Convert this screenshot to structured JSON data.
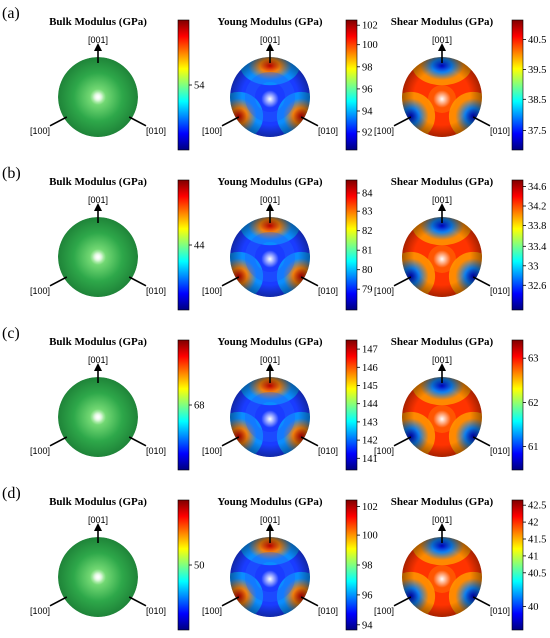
{
  "figure": {
    "colormap": [
      "#00007f",
      "#0000ff",
      "#0080ff",
      "#00ffff",
      "#80ff80",
      "#ffff00",
      "#ff8000",
      "#ff0000",
      "#7f0000"
    ],
    "bulk_sphere_color": "#2ea84a",
    "panels": [
      {
        "label": "(a)",
        "plots": [
          {
            "title": "Bulk Modulus (GPa)",
            "kind": "bulk",
            "colorbar_ticks": [
              {
                "label": "54",
                "frac": 0.5
              }
            ],
            "directions": [
              "[001]",
              "[100]",
              "[010]"
            ]
          },
          {
            "title": "Young Modulus (GPa)",
            "kind": "young",
            "colorbar_ticks": [
              {
                "label": "102",
                "frac": 0.96
              },
              {
                "label": "100",
                "frac": 0.81
              },
              {
                "label": "98",
                "frac": 0.64
              },
              {
                "label": "96",
                "frac": 0.47
              },
              {
                "label": "94",
                "frac": 0.3
              },
              {
                "label": "92",
                "frac": 0.14
              }
            ],
            "directions": [
              "[001]",
              "[100]",
              "[010]"
            ]
          },
          {
            "title": "Shear Modulus (GPa)",
            "kind": "shear",
            "colorbar_ticks": [
              {
                "label": "40.5",
                "frac": 0.85
              },
              {
                "label": "39.5",
                "frac": 0.62
              },
              {
                "label": "38.5",
                "frac": 0.39
              },
              {
                "label": "37.5",
                "frac": 0.15
              }
            ],
            "directions": [
              "[001]",
              "[100]",
              "[010]"
            ]
          }
        ]
      },
      {
        "label": "(b)",
        "plots": [
          {
            "title": "Bulk Modulus (GPa)",
            "kind": "bulk",
            "colorbar_ticks": [
              {
                "label": "44",
                "frac": 0.5
              }
            ],
            "directions": [
              "[001]",
              "[100]",
              "[010]"
            ]
          },
          {
            "title": "Young Modulus (GPa)",
            "kind": "young",
            "colorbar_ticks": [
              {
                "label": "84",
                "frac": 0.9
              },
              {
                "label": "83",
                "frac": 0.76
              },
              {
                "label": "82",
                "frac": 0.61
              },
              {
                "label": "81",
                "frac": 0.46
              },
              {
                "label": "80",
                "frac": 0.31
              },
              {
                "label": "79",
                "frac": 0.16
              }
            ],
            "directions": [
              "[001]",
              "[100]",
              "[010]"
            ]
          },
          {
            "title": "Shear Modulus (GPa)",
            "kind": "shear",
            "colorbar_ticks": [
              {
                "label": "34.6",
                "frac": 0.95
              },
              {
                "label": "34.2",
                "frac": 0.8
              },
              {
                "label": "33.8",
                "frac": 0.65
              },
              {
                "label": "33.4",
                "frac": 0.49
              },
              {
                "label": "33",
                "frac": 0.34
              },
              {
                "label": "32.6",
                "frac": 0.19
              }
            ],
            "directions": [
              "[001]",
              "[100]",
              "[010]"
            ]
          }
        ]
      },
      {
        "label": "(c)",
        "plots": [
          {
            "title": "Bulk Modulus (GPa)",
            "kind": "bulk",
            "colorbar_ticks": [
              {
                "label": "68",
                "frac": 0.5
              }
            ],
            "directions": [
              "[001]",
              "[100]",
              "[010]"
            ]
          },
          {
            "title": "Young Modulus (GPa)",
            "kind": "young",
            "colorbar_ticks": [
              {
                "label": "147",
                "frac": 0.93
              },
              {
                "label": "146",
                "frac": 0.79
              },
              {
                "label": "145",
                "frac": 0.65
              },
              {
                "label": "144",
                "frac": 0.51
              },
              {
                "label": "143",
                "frac": 0.37
              },
              {
                "label": "142",
                "frac": 0.23
              },
              {
                "label": "141",
                "frac": 0.09
              }
            ],
            "directions": [
              "[001]",
              "[100]",
              "[010]"
            ]
          },
          {
            "title": "Shear Modulus (GPa)",
            "kind": "shear",
            "colorbar_ticks": [
              {
                "label": "63",
                "frac": 0.86
              },
              {
                "label": "62",
                "frac": 0.52
              },
              {
                "label": "61",
                "frac": 0.18
              }
            ],
            "directions": [
              "[001]",
              "[100]",
              "[010]"
            ]
          }
        ]
      },
      {
        "label": "(d)",
        "plots": [
          {
            "title": "Bulk Modulus (GPa)",
            "kind": "bulk",
            "colorbar_ticks": [
              {
                "label": "50",
                "frac": 0.5
              }
            ],
            "directions": [
              "[001]",
              "[100]",
              "[010]"
            ]
          },
          {
            "title": "Young Modulus (GPa)",
            "kind": "young",
            "colorbar_ticks": [
              {
                "label": "102",
                "frac": 0.95
              },
              {
                "label": "100",
                "frac": 0.73
              },
              {
                "label": "98",
                "frac": 0.5
              },
              {
                "label": "96",
                "frac": 0.27
              },
              {
                "label": "94",
                "frac": 0.04
              }
            ],
            "directions": [
              "[001]",
              "[100]",
              "[010]"
            ]
          },
          {
            "title": "Shear Modulus (GPa)",
            "kind": "shear",
            "colorbar_ticks": [
              {
                "label": "42.5",
                "frac": 0.96
              },
              {
                "label": "42",
                "frac": 0.83
              },
              {
                "label": "41.5",
                "frac": 0.7
              },
              {
                "label": "41",
                "frac": 0.57
              },
              {
                "label": "40.5",
                "frac": 0.44
              },
              {
                "label": "40",
                "frac": 0.18
              }
            ],
            "directions": [
              "[001]",
              "[100]",
              "[010]"
            ]
          }
        ]
      }
    ]
  }
}
